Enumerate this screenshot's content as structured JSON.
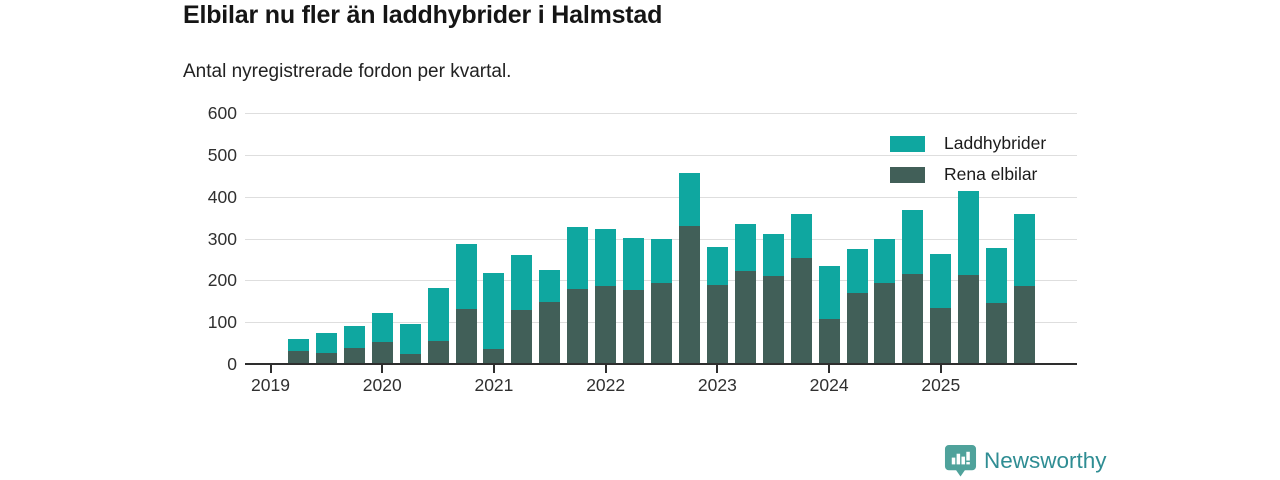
{
  "header": {
    "title": "Elbilar nu fler än laddhybrider i Halmstad",
    "subtitle": "Antal nyregistrerade fordon per kvartal."
  },
  "chart_data": {
    "type": "bar",
    "stacked": true,
    "title": "Elbilar nu fler än laddhybrider i Halmstad",
    "subtitle": "Antal nyregistrerade fordon per kvartal.",
    "xlabel": "",
    "ylabel": "",
    "ylim": [
      0,
      600
    ],
    "yticks": [
      0,
      100,
      200,
      300,
      400,
      500,
      600
    ],
    "grid": true,
    "legend_position": "top-right",
    "legend_order": [
      "Laddhybrider",
      "Rena elbilar"
    ],
    "x": [
      "2019 Q2",
      "2019 Q3",
      "2019 Q4",
      "2020 Q1",
      "2020 Q2",
      "2020 Q3",
      "2020 Q4",
      "2021 Q1",
      "2021 Q2",
      "2021 Q3",
      "2021 Q4",
      "2022 Q1",
      "2022 Q2",
      "2022 Q3",
      "2022 Q4",
      "2023 Q1",
      "2023 Q2",
      "2023 Q3",
      "2023 Q4",
      "2024 Q1",
      "2024 Q2",
      "2024 Q3",
      "2024 Q4",
      "2025 Q1",
      "2025 Q2",
      "2025 Q3",
      "2025 Q4"
    ],
    "xticklabels": [
      "2019",
      "2020",
      "2021",
      "2022",
      "2023",
      "2024",
      "2025"
    ],
    "series": [
      {
        "name": "Rena elbilar",
        "stack_position": "bottom",
        "color": "#415F58",
        "values": [
          31,
          27,
          38,
          53,
          23,
          56,
          132,
          36,
          129,
          149,
          179,
          186,
          177,
          193,
          331,
          189,
          222,
          210,
          254,
          108,
          170,
          193,
          215,
          135,
          214,
          147,
          186
        ]
      },
      {
        "name": "Laddhybrider",
        "stack_position": "top",
        "color": "#0FA7A0",
        "values": [
          29,
          48,
          53,
          69,
          72,
          127,
          156,
          182,
          132,
          76,
          149,
          137,
          124,
          106,
          127,
          92,
          112,
          101,
          105,
          127,
          106,
          106,
          153,
          127,
          201,
          130,
          173
        ]
      }
    ]
  },
  "footer": {
    "brand": "Newsworthy"
  },
  "colors": {
    "laddhybrider": "#0FA7A0",
    "rena_elbilar": "#415F58",
    "gridline": "#dedede",
    "axis": "#2e2e2e",
    "brand_badge": "#4FA29B",
    "brand_text": "#2f8d93"
  }
}
